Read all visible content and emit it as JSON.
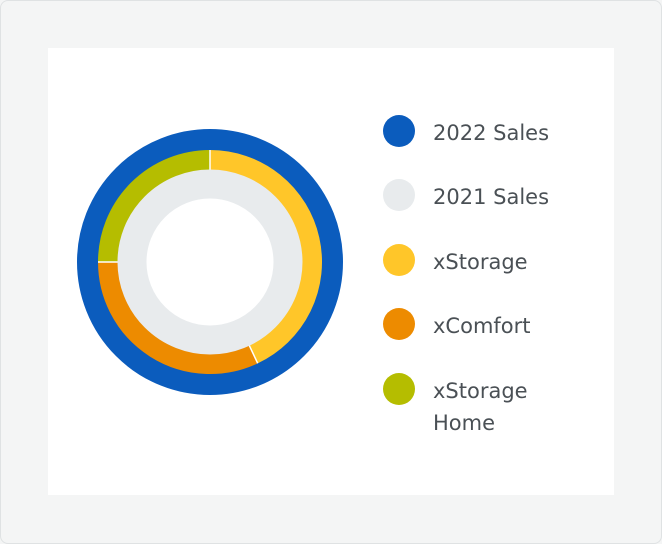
{
  "chart_data": {
    "type": "pie",
    "variant": "nested-donut",
    "series": [
      {
        "name": "2022 Sales",
        "ring": "outer",
        "categories": [
          "2022 Sales"
        ],
        "values": [
          100
        ],
        "color": "#0b5cbd"
      },
      {
        "name": "2021 Sales",
        "ring": "middle",
        "categories": [
          "xStorage",
          "xComfort",
          "xStorage Home"
        ],
        "values": [
          43,
          32,
          25
        ],
        "colors": [
          "#ffc629",
          "#ed8b00",
          "#b5bd00"
        ]
      },
      {
        "name": "",
        "ring": "inner",
        "categories": [
          "2021 Sales"
        ],
        "values": [
          100
        ],
        "color": "#e8ebed"
      }
    ],
    "legend": {
      "position": "right",
      "items": [
        {
          "label": "2022 Sales",
          "color": "#0b5cbd"
        },
        {
          "label": "2021 Sales",
          "color": "#e8ebed"
        },
        {
          "label": "xStorage",
          "color": "#ffc629"
        },
        {
          "label": "xComfort",
          "color": "#ed8b00"
        },
        {
          "label": "xStorage\nHome",
          "color": "#b5bd00"
        }
      ]
    }
  }
}
